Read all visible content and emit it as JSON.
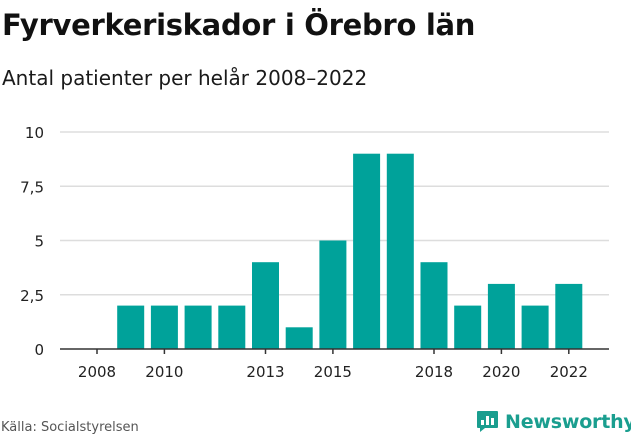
{
  "header": {
    "title": "Fyrverkeriskador i Örebro län",
    "subtitle": "Antal patienter per helår 2008–2022"
  },
  "footer": {
    "source": "Källa: Socialstyrelsen",
    "brand": "Newsworthy",
    "brand_icon": "bar-chart-icon"
  },
  "colors": {
    "bar": "#00a29a",
    "grid": "#dddddd",
    "axis": "#333333",
    "brand": "#1a9e8f"
  },
  "chart_data": {
    "type": "bar",
    "title": "Fyrverkeriskador i Örebro län",
    "subtitle": "Antal patienter per helår 2008–2022",
    "x": [
      2008,
      2009,
      2010,
      2011,
      2012,
      2013,
      2014,
      2015,
      2016,
      2017,
      2018,
      2019,
      2020,
      2021,
      2022
    ],
    "values": [
      0,
      2,
      2,
      2,
      2,
      4,
      1,
      5,
      9,
      9,
      4,
      2,
      3,
      2,
      3
    ],
    "x_tick_labels": [
      "2008",
      "2010",
      "2013",
      "2015",
      "2018",
      "2020",
      "2022"
    ],
    "y_ticks": [
      0,
      2.5,
      5,
      7.5,
      10
    ],
    "y_tick_labels": [
      "0",
      "2,5",
      "5",
      "7,5",
      "10"
    ],
    "ylim": [
      0,
      10
    ],
    "grid": true,
    "xlabel": "",
    "ylabel": ""
  }
}
